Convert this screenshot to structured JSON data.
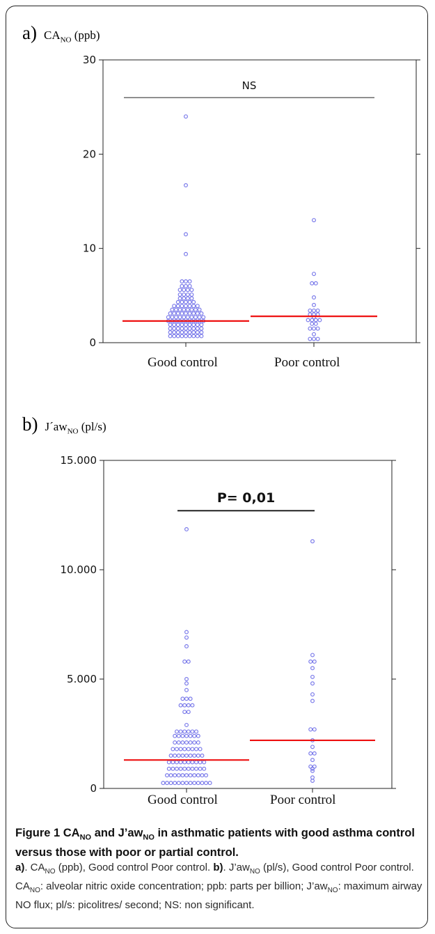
{
  "panels": {
    "a": {
      "letter": "a)",
      "name": "CA",
      "name_sub": "NO",
      "name_unit": " (ppb)"
    },
    "b": {
      "letter": "b)",
      "name": "J´aw",
      "name_sub": "NO",
      "name_unit": " (pl/s)"
    }
  },
  "categories": [
    "Good control",
    "Poor control"
  ],
  "chart_data": [
    {
      "type": "scatter",
      "panel": "a",
      "categories": [
        "Good control",
        "Poor control"
      ],
      "yticks": [
        "0",
        "10",
        "20",
        "30"
      ],
      "ytick_values": [
        0,
        10,
        20,
        30
      ],
      "ylim": [
        0,
        30
      ],
      "annotation": "NS",
      "bracket_y": 26,
      "colors": {
        "points": "#7b7bea",
        "median": "#ee1111"
      },
      "series": [
        {
          "category": "Good control",
          "median": 2.3,
          "values": [
            24.0,
            16.7,
            11.5,
            9.4,
            6.5,
            6.5,
            6.5,
            6.0,
            6.0,
            6.0,
            5.6,
            5.6,
            5.6,
            5.6,
            5.1,
            5.1,
            5.1,
            5.1,
            4.7,
            4.7,
            4.7,
            4.7,
            4.3,
            4.3,
            4.3,
            4.3,
            4.3,
            3.9,
            3.9,
            3.9,
            3.9,
            3.9,
            3.9,
            3.9,
            3.5,
            3.5,
            3.5,
            3.5,
            3.5,
            3.5,
            3.5,
            3.5,
            3.1,
            3.1,
            3.1,
            3.1,
            3.1,
            3.1,
            3.1,
            3.1,
            3.1,
            2.7,
            2.7,
            2.7,
            2.7,
            2.7,
            2.7,
            2.7,
            2.7,
            2.7,
            2.7,
            2.3,
            2.3,
            2.3,
            2.3,
            2.3,
            2.3,
            2.3,
            2.3,
            2.3,
            2.3,
            1.9,
            1.9,
            1.9,
            1.9,
            1.9,
            1.9,
            1.9,
            1.9,
            1.9,
            1.5,
            1.5,
            1.5,
            1.5,
            1.5,
            1.5,
            1.5,
            1.5,
            1.5,
            1.1,
            1.1,
            1.1,
            1.1,
            1.1,
            1.1,
            1.1,
            1.1,
            1.1,
            0.7,
            0.7,
            0.7,
            0.7,
            0.7,
            0.7,
            0.7,
            0.7,
            0.7
          ]
        },
        {
          "category": "Poor control",
          "median": 2.8,
          "values": [
            13.0,
            7.3,
            6.3,
            6.3,
            4.8,
            4.0,
            3.4,
            3.4,
            3.4,
            3.0,
            3.0,
            3.0,
            2.7,
            2.4,
            2.4,
            2.4,
            2.4,
            2.0,
            2.0,
            1.5,
            1.5,
            1.5,
            0.9,
            0.4,
            0.4,
            0.4
          ]
        }
      ]
    },
    {
      "type": "scatter",
      "panel": "b",
      "categories": [
        "Good control",
        "Poor control"
      ],
      "yticks": [
        "0",
        "5.000",
        "10.000",
        "15.000"
      ],
      "ytick_values": [
        0,
        5000,
        10000,
        15000
      ],
      "ylim": [
        0,
        15000
      ],
      "annotation": "P= 0,01",
      "bracket_y": 12700,
      "colors": {
        "points": "#7b7bea",
        "median": "#ee1111"
      },
      "series": [
        {
          "category": "Good control",
          "median": 1300,
          "values": [
            11850,
            7150,
            6900,
            6500,
            5800,
            5800,
            5000,
            4800,
            4500,
            4100,
            4100,
            4100,
            3800,
            3800,
            3800,
            3800,
            3500,
            3500,
            2900,
            2600,
            2600,
            2600,
            2600,
            2600,
            2600,
            2400,
            2400,
            2400,
            2400,
            2400,
            2400,
            2400,
            2100,
            2100,
            2100,
            2100,
            2100,
            2100,
            2100,
            1800,
            1800,
            1800,
            1800,
            1800,
            1800,
            1800,
            1800,
            1500,
            1500,
            1500,
            1500,
            1500,
            1500,
            1500,
            1500,
            1500,
            1200,
            1200,
            1200,
            1200,
            1200,
            1200,
            1200,
            1200,
            1200,
            1200,
            900,
            900,
            900,
            900,
            900,
            900,
            900,
            900,
            900,
            900,
            600,
            600,
            600,
            600,
            600,
            600,
            600,
            600,
            600,
            600,
            600,
            250,
            250,
            250,
            250,
            250,
            250,
            250,
            250,
            250,
            250,
            250,
            250,
            250
          ]
        },
        {
          "category": "Poor control",
          "median": 2200,
          "values": [
            11300,
            6100,
            5800,
            5800,
            5500,
            5100,
            4800,
            4300,
            4000,
            2700,
            2700,
            2200,
            1900,
            1600,
            1600,
            1300,
            1000,
            1000,
            900,
            800,
            500,
            350
          ]
        }
      ]
    }
  ],
  "caption": {
    "title_1": "Figure 1 CA",
    "title_sub_1": "NO",
    "title_2": " and J’aw",
    "title_sub_2": "NO",
    "title_3": " in asthmatic patients with good asthma control versus those with poor or partial control.",
    "a_label": "a)",
    "a_1": ". CA",
    "a_sub": "NO",
    "a_2": " (ppb), Good control Poor control. ",
    "b_label": "b)",
    "b_1": ". J’aw",
    "b_sub": "NO",
    "b_2": " (pl/s), Good control Poor control. CA",
    "b_sub2": "NO",
    "b_3": ": alveolar nitric oxide concentration; ppb: parts per billion; J’aw",
    "b_sub3": "NO",
    "b_4": ": maximum airway NO flux; pl/s: picolitres/ second; NS: non significant."
  }
}
